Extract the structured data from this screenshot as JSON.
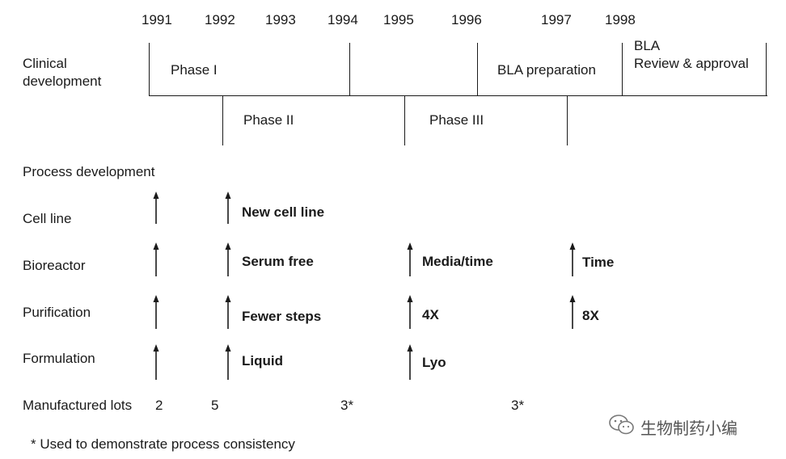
{
  "years": [
    "1991",
    "1992",
    "1993",
    "1994",
    "1995",
    "1996",
    "1997",
    "1998"
  ],
  "clinical": {
    "label_line1": "Clinical",
    "label_line2": "development",
    "phase1": "Phase I",
    "phase2": "Phase II",
    "phase3": "Phase III",
    "bla_prep": "BLA preparation",
    "bla_review_line1": "BLA",
    "bla_review_line2": "Review & approval"
  },
  "process": {
    "heading": "Process development",
    "rows": [
      {
        "label": "Cell line",
        "changes": [
          "New cell line"
        ]
      },
      {
        "label": "Bioreactor",
        "changes": [
          "Serum free",
          "Media/time",
          "Time"
        ]
      },
      {
        "label": "Purification",
        "changes": [
          "Fewer steps",
          "4X",
          "8X"
        ]
      },
      {
        "label": "Formulation",
        "changes": [
          "Liquid",
          "Lyo"
        ]
      }
    ]
  },
  "lots": {
    "label": "Manufactured lots",
    "values": [
      "2",
      "5",
      "3*",
      "3*"
    ]
  },
  "footnote": "* Used to demonstrate process consistency",
  "watermark": {
    "icon": "wechat-icon",
    "text": "生物制药小编"
  }
}
